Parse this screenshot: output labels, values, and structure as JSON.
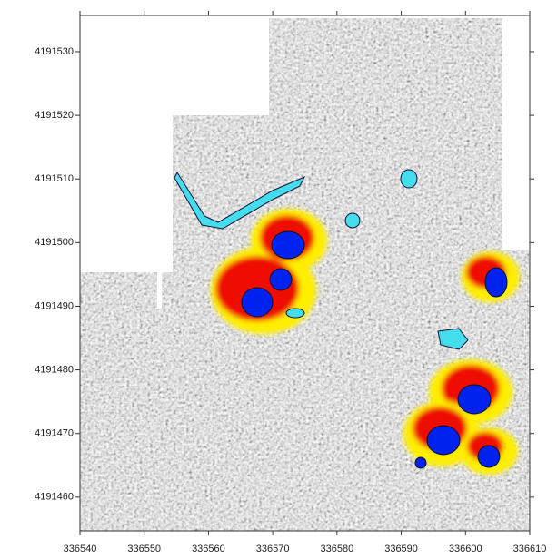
{
  "chart_data": {
    "type": "map",
    "xlim": [
      336540,
      336610
    ],
    "ylim": [
      4191454.7,
      4191535.7
    ],
    "xticks": [
      336540,
      336550,
      336560,
      336570,
      336580,
      336590,
      336600,
      336610
    ],
    "yticks": [
      4191460,
      4191470,
      4191480,
      4191490,
      4191500,
      4191510,
      4191520,
      4191530
    ]
  }
}
